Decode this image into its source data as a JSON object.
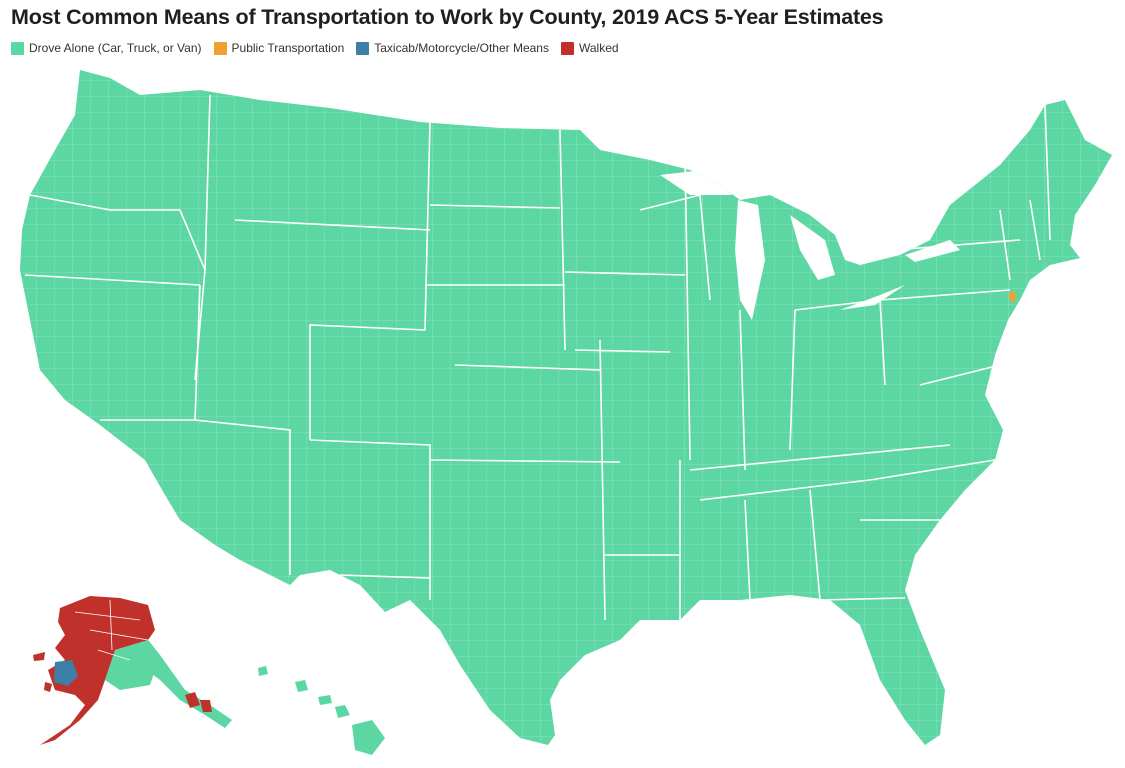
{
  "title": "Most Common Means of Transportation to Work by County, 2019 ACS 5-Year Estimates",
  "legend": [
    {
      "label": "Drove Alone (Car, Truck, or Van)",
      "color": "#5cd6a2"
    },
    {
      "label": "Public Transportation",
      "color": "#f0a030"
    },
    {
      "label": "Taxicab/Motorcycle/Other Means",
      "color": "#3d7fa6"
    },
    {
      "label": "Walked",
      "color": "#c1312b"
    }
  ],
  "colors": {
    "drove_alone": "#5cd6a2",
    "public_transportation": "#f0a030",
    "other_means": "#3d7fa6",
    "walked": "#c1312b",
    "border": "#ffffff"
  }
}
